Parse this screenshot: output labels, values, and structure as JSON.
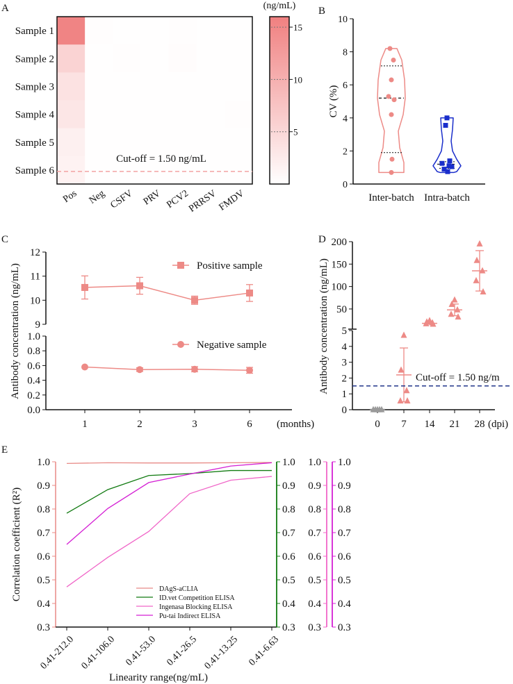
{
  "chart_data": [
    {
      "panel": "A",
      "type": "heatmap",
      "rows": [
        "Sample 1",
        "Sample 2",
        "Sample 3",
        "Sample 4",
        "Sample 5",
        "Sample 6"
      ],
      "cols": [
        "Pos",
        "Neg",
        "CSFV",
        "PRV",
        "PCV2",
        "PRRSV",
        "FMDV"
      ],
      "values": [
        [
          15.5,
          0.2,
          0.1,
          0.1,
          0.2,
          0.1,
          0.1
        ],
        [
          5.5,
          0.1,
          0.2,
          0.1,
          0.4,
          0.1,
          0.1
        ],
        [
          3.6,
          0.1,
          0.1,
          0.1,
          0.1,
          0.1,
          0.1
        ],
        [
          3.1,
          0.1,
          0.1,
          0.1,
          0.1,
          0.1,
          0.2
        ],
        [
          1.9,
          0.1,
          0.1,
          0.1,
          0.1,
          0.1,
          0.1
        ],
        [
          1.6,
          0.1,
          0.1,
          0.1,
          0.1,
          0.1,
          0.1
        ]
      ],
      "colorbar": {
        "label": "(ng/mL)",
        "ticks": [
          5,
          10,
          15
        ],
        "min": 0,
        "max": 16
      },
      "annotation": "Cut-off = 1.50 ng/mL",
      "cutoff": 1.5
    },
    {
      "panel": "B",
      "type": "violin",
      "ylabel": "CV (%)",
      "ylim": [
        0,
        10
      ],
      "yticks": [
        0,
        2,
        4,
        6,
        8,
        10
      ],
      "groups": [
        {
          "name": "Inter-batch",
          "points": [
            8.2,
            7.5,
            6.3,
            5.3,
            5.1,
            4.2,
            1.5,
            0.7
          ],
          "median": 5.2,
          "q1": 1.9,
          "q3": 7.15
        },
        {
          "name": "Intra-batch",
          "points": [
            4.0,
            3.55,
            1.4,
            1.25,
            1.1,
            1.05,
            0.9,
            0.75
          ],
          "median": 1.2,
          "q1": 0.95,
          "q3": 1.35
        }
      ]
    },
    {
      "panel": "C",
      "type": "line",
      "ylabel": "Antibody concentration (ng/mL)",
      "x": [
        "1",
        "2",
        "3",
        "6"
      ],
      "xunit": "(months)",
      "upper": {
        "ylim": [
          9,
          12
        ],
        "yticks": [
          9,
          10,
          11,
          12
        ]
      },
      "lower": {
        "ylim": [
          0,
          1
        ],
        "yticks": [
          "0.0",
          "0.2",
          "0.4",
          "0.6",
          "0.8",
          "1.0"
        ]
      },
      "series": [
        {
          "name": "Positive sample",
          "values": [
            10.53,
            10.6,
            10.0,
            10.3
          ],
          "errors": [
            0.48,
            0.35,
            0.17,
            0.35
          ],
          "marker": "square"
        },
        {
          "name": "Negative sample",
          "values": [
            0.58,
            0.545,
            0.55,
            0.535
          ],
          "errors": [
            0.0,
            0.025,
            0.035,
            0.04
          ],
          "marker": "circle"
        }
      ]
    },
    {
      "panel": "D",
      "type": "scatter",
      "ylabel": "Antibody concentration (ng/mL)",
      "x": [
        "0",
        "7",
        "14",
        "21",
        "28"
      ],
      "xunit": "(dpi)",
      "upper": {
        "ylim": [
          5,
          200
        ],
        "yticks": [
          50,
          100,
          150,
          200
        ]
      },
      "lower": {
        "ylim": [
          0,
          5
        ],
        "yticks": [
          0,
          1,
          2,
          3,
          4,
          5
        ]
      },
      "groups": [
        {
          "x": "0",
          "values": [
            0.0,
            0.0,
            0.0,
            0.0,
            0.0
          ],
          "mean": 0.02,
          "sd": 0.02
        },
        {
          "x": "7",
          "values": [
            4.7,
            2.5,
            1.2,
            0.55,
            0.55
          ],
          "mean": 2.2,
          "sd": 1.7
        },
        {
          "x": "14",
          "values": [
            24,
            21,
            19,
            17,
            16
          ],
          "mean": 18,
          "sd": 2
        },
        {
          "x": "21",
          "values": [
            70,
            60,
            48,
            38,
            32
          ],
          "mean": 48,
          "sd": 13
        },
        {
          "x": "28",
          "values": [
            195,
            158,
            135,
            113,
            88
          ],
          "mean": 135,
          "sd": 45
        }
      ],
      "annotation": "Cut-off = 1.50 ng/m",
      "cutoff": 1.5
    },
    {
      "panel": "E",
      "type": "line",
      "ylabel": "Correlation coefficient (R²)",
      "xlabel": "Linearity range(ng/mL)",
      "categories": [
        "0.41-212.0",
        "0.41-106.0",
        "0.41-53.0",
        "0.41-26.5",
        "0.41-13.25",
        "0.41-6.63"
      ],
      "ylim": [
        0.3,
        1.0
      ],
      "yticks": [
        "0.3",
        "0.4",
        "0.5",
        "0.6",
        "0.7",
        "0.8",
        "0.9",
        "1.0"
      ],
      "series": [
        {
          "name": "DAgS-aCLIA",
          "color": "#e88a86",
          "values": [
            0.993,
            0.996,
            0.995,
            0.995,
            0.996,
            0.997
          ]
        },
        {
          "name": "ID.vet Competition ELISA",
          "color": "#117a11",
          "values": [
            0.782,
            0.882,
            0.942,
            0.95,
            0.963,
            0.963
          ]
        },
        {
          "name": "Ingenasa Blocking ELISA",
          "color": "#f066c8",
          "values": [
            0.47,
            0.595,
            0.705,
            0.865,
            0.922,
            0.938
          ]
        },
        {
          "name": "Pu-tai Indirect ELISA",
          "color": "#d41fd4",
          "values": [
            0.65,
            0.802,
            0.912,
            0.948,
            0.982,
            0.996
          ]
        }
      ]
    }
  ]
}
